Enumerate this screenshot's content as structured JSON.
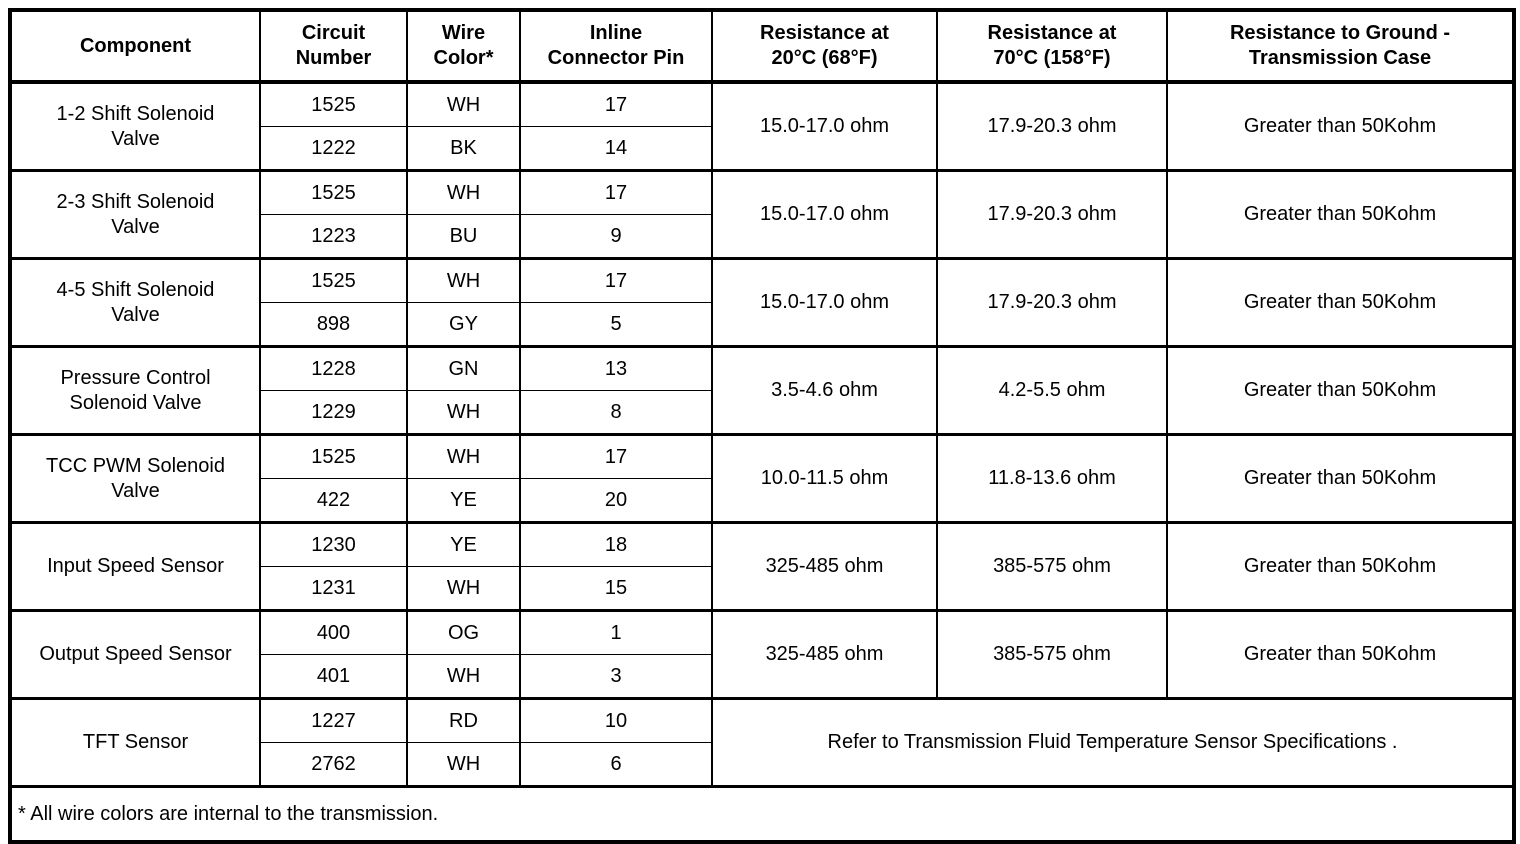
{
  "table": {
    "headers": [
      "Component",
      "Circuit\nNumber",
      "Wire\nColor*",
      "Inline\nConnector Pin",
      "Resistance at\n20°C (68°F)",
      "Resistance at\n70°C (158°F)",
      "Resistance to Ground -\nTransmission Case"
    ],
    "rows": [
      {
        "component": "1-2 Shift Solenoid\nValve",
        "circuits": [
          {
            "number": "1525",
            "color": "WH",
            "pin": "17"
          },
          {
            "number": "1222",
            "color": "BK",
            "pin": "14"
          }
        ],
        "r20": "15.0-17.0 ohm",
        "r70": "17.9-20.3 ohm",
        "ground": "Greater than 50Kohm"
      },
      {
        "component": "2-3 Shift Solenoid\nValve",
        "circuits": [
          {
            "number": "1525",
            "color": "WH",
            "pin": "17"
          },
          {
            "number": "1223",
            "color": "BU",
            "pin": "9"
          }
        ],
        "r20": "15.0-17.0 ohm",
        "r70": "17.9-20.3 ohm",
        "ground": "Greater than 50Kohm"
      },
      {
        "component": "4-5 Shift Solenoid\nValve",
        "circuits": [
          {
            "number": "1525",
            "color": "WH",
            "pin": "17"
          },
          {
            "number": "898",
            "color": "GY",
            "pin": "5"
          }
        ],
        "r20": "15.0-17.0 ohm",
        "r70": "17.9-20.3 ohm",
        "ground": "Greater than 50Kohm"
      },
      {
        "component": "Pressure Control\nSolenoid Valve",
        "circuits": [
          {
            "number": "1228",
            "color": "GN",
            "pin": "13"
          },
          {
            "number": "1229",
            "color": "WH",
            "pin": "8"
          }
        ],
        "r20": "3.5-4.6 ohm",
        "r70": "4.2-5.5 ohm",
        "ground": "Greater than 50Kohm"
      },
      {
        "component": "TCC PWM Solenoid\nValve",
        "circuits": [
          {
            "number": "1525",
            "color": "WH",
            "pin": "17"
          },
          {
            "number": "422",
            "color": "YE",
            "pin": "20"
          }
        ],
        "r20": "10.0-11.5 ohm",
        "r70": "11.8-13.6 ohm",
        "ground": "Greater than 50Kohm"
      },
      {
        "component": "Input Speed Sensor",
        "circuits": [
          {
            "number": "1230",
            "color": "YE",
            "pin": "18"
          },
          {
            "number": "1231",
            "color": "WH",
            "pin": "15"
          }
        ],
        "r20": "325-485 ohm",
        "r70": "385-575 ohm",
        "ground": "Greater than 50Kohm"
      },
      {
        "component": "Output Speed Sensor",
        "circuits": [
          {
            "number": "400",
            "color": "OG",
            "pin": "1"
          },
          {
            "number": "401",
            "color": "WH",
            "pin": "3"
          }
        ],
        "r20": "325-485 ohm",
        "r70": "385-575 ohm",
        "ground": "Greater than 50Kohm"
      },
      {
        "component": "TFT Sensor",
        "circuits": [
          {
            "number": "1227",
            "color": "RD",
            "pin": "10"
          },
          {
            "number": "2762",
            "color": "WH",
            "pin": "6"
          }
        ],
        "note": "Refer to Transmission Fluid Temperature Sensor Specifications ."
      }
    ],
    "footnote": "* All wire colors are internal to the transmission."
  }
}
